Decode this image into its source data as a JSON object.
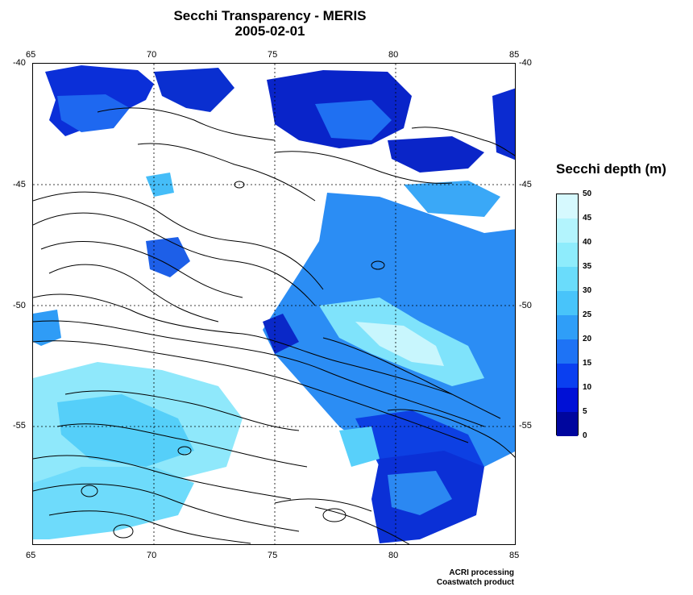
{
  "title": "Secchi Transparency - MERIS",
  "date": "2005-02-01",
  "x_ticks": [
    "65",
    "70",
    "75",
    "80",
    "85"
  ],
  "y_ticks": [
    "-40",
    "-45",
    "-50",
    "-55"
  ],
  "legend": {
    "title": "Secchi depth (m)",
    "ticks": [
      "50",
      "45",
      "40",
      "35",
      "30",
      "25",
      "20",
      "15",
      "10",
      "5",
      "0"
    ],
    "colors": [
      "#00069e",
      "#0010d6",
      "#0a3ff0",
      "#1e73f5",
      "#2f9ef8",
      "#48c4fa",
      "#6adcfb",
      "#8eecfc",
      "#b3f4fd",
      "#d6f9fe"
    ]
  },
  "credits": {
    "line1": "ACRI processing",
    "line2": "Coastwatch product"
  }
}
